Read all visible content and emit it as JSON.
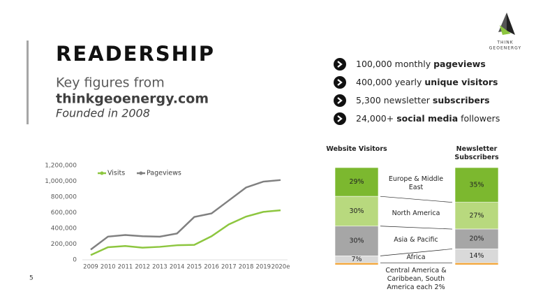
{
  "header": {
    "title": "READERSHIP",
    "subtitle": "Key figures from",
    "site": "thinkgeoenergy.com",
    "founded": "Founded in 2008"
  },
  "logo": {
    "line1": "THINK",
    "line2": "GEOENERGY"
  },
  "bullets": [
    {
      "parts": [
        {
          "text": "100,000 monthly ",
          "bold": false
        },
        {
          "text": "pageviews",
          "bold": true
        }
      ]
    },
    {
      "parts": [
        {
          "text": "400,000 yearly ",
          "bold": false
        },
        {
          "text": "unique visitors",
          "bold": true
        }
      ]
    },
    {
      "parts": [
        {
          "text": "5,300 newsletter ",
          "bold": false
        },
        {
          "text": "subscribers",
          "bold": true
        }
      ]
    },
    {
      "parts": [
        {
          "text": "24,000+ ",
          "bold": false
        },
        {
          "text": "social media",
          "bold": true
        },
        {
          "text": " followers",
          "bold": false
        }
      ]
    }
  ],
  "page_number": "5",
  "chart_data": [
    {
      "type": "line",
      "categories": [
        "2009",
        "2010",
        "2011",
        "2012",
        "2013",
        "2014",
        "2015",
        "2016",
        "2017",
        "2018",
        "2019",
        "2020e"
      ],
      "series": [
        {
          "name": "Visits",
          "color": "#8dc63f",
          "values": [
            60000,
            160000,
            175000,
            155000,
            165000,
            185000,
            190000,
            300000,
            450000,
            550000,
            610000,
            630000
          ]
        },
        {
          "name": "Pageviews",
          "color": "#808080",
          "values": [
            130000,
            295000,
            315000,
            300000,
            295000,
            335000,
            545000,
            590000,
            755000,
            920000,
            995000,
            1015000
          ]
        }
      ],
      "ylim": [
        0,
        1200000
      ],
      "yticks": [
        0,
        {
          "value": 200000,
          "label": "200,000"
        },
        {
          "value": 400000,
          "label": "400,000"
        },
        {
          "value": 600000,
          "label": "600,000"
        },
        {
          "value": 800000,
          "label": "800,000"
        },
        {
          "value": 1000000,
          "label": "1,000,000"
        },
        {
          "value": 1200000,
          "label": "1,200,000"
        }
      ],
      "legend": "top-left"
    },
    {
      "type": "stacked_bar",
      "categories": [
        "Website Visitors",
        "Newsletter Subscribers"
      ],
      "series": [
        {
          "name": "Europe & Middle East",
          "color": "#7cb82f",
          "values": [
            29,
            35
          ],
          "value_labels": [
            "29%",
            "35%"
          ]
        },
        {
          "name": "North America",
          "color": "#b8d97e",
          "values": [
            30,
            27
          ],
          "value_labels": [
            "30%",
            "27%"
          ]
        },
        {
          "name": "Asia & Pacific",
          "color": "#a6a6a6",
          "values": [
            30,
            20
          ],
          "value_labels": [
            "30%",
            "20%"
          ]
        },
        {
          "name": "Africa",
          "color": "#d9d9d9",
          "values": [
            7,
            14
          ],
          "value_labels": [
            "7%",
            "14%"
          ]
        },
        {
          "name": "Central America & Caribbean, South America each 2%",
          "color": "#f0a030",
          "values": [
            2,
            2
          ],
          "value_labels": [
            null,
            null
          ]
        }
      ]
    }
  ]
}
